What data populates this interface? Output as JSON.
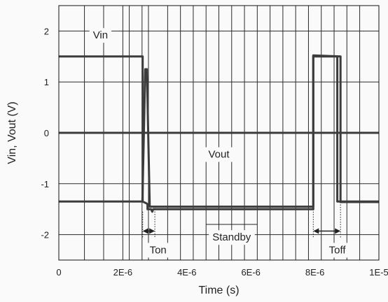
{
  "chart_data": {
    "type": "line",
    "title": "",
    "xlabel": "Time (s)",
    "ylabel": "Vin, Vout (V)",
    "xlim": [
      0,
      1e-05
    ],
    "ylim": [
      -2.5,
      2.5
    ],
    "x_ticks": [
      {
        "value": 0,
        "label": "0"
      },
      {
        "value": 2e-06,
        "label": "2E-6"
      },
      {
        "value": 4e-06,
        "label": "4E-6"
      },
      {
        "value": 6e-06,
        "label": "6E-6"
      },
      {
        "value": 8e-06,
        "label": "8E-6"
      },
      {
        "value": 1e-05,
        "label": "1E-5"
      }
    ],
    "y_ticks": [
      {
        "value": 2,
        "label": "2"
      },
      {
        "value": 1,
        "label": "1"
      },
      {
        "value": 0,
        "label": "0"
      },
      {
        "value": -1,
        "label": "-1"
      },
      {
        "value": -2,
        "label": "-2"
      }
    ],
    "x_minor_gridlines": [
      8e-07,
      1.4e-06,
      2e-06,
      2.2e-06,
      2.6e-06,
      2.8e-06,
      3.4e-06,
      3.8e-06,
      4.2e-06,
      4.6e-06,
      5e-06,
      5.4e-06,
      5.8e-06,
      6.2e-06,
      6.6e-06,
      7e-06,
      7.4e-06,
      7.8e-06,
      8.2e-06,
      8.6e-06,
      9e-06,
      9.4e-06
    ],
    "grid": true,
    "series": [
      {
        "name": "",
        "color": "#3c3c3c",
        "x": [
          0,
          2.62e-06,
          2.62e-06,
          2.72e-06,
          2.77e-06,
          2.77e-06,
          2.88e-06,
          2.92e-06,
          2.95e-06,
          7.95e-06,
          7.95e-06,
          8.8e-06,
          8.8e-06,
          1e-05
        ],
        "y": [
          1.5,
          1.5,
          -1.35,
          -1.38,
          -1.4,
          -1.5,
          -1.5,
          -1.55,
          -1.5,
          -1.5,
          1.52,
          1.5,
          -1.36,
          -1.36
        ]
      },
      {
        "name": "",
        "color": "#3c3c3c",
        "x": [
          0,
          2.45e-06,
          2.46e-06,
          2.6e-06,
          2.61e-06,
          2.7e-06,
          2.75e-06,
          2.84e-06,
          2.87e-06,
          2.91e-06,
          2.92e-06,
          3.05e-06,
          3e-06,
          7.95e-06,
          7.95e-06,
          8.7e-06,
          8.7e-06,
          1e-05
        ],
        "y": [
          -1.35,
          -1.35,
          -1.35,
          -1.35,
          -1.35,
          1.25,
          1.25,
          -1.45,
          -1.45,
          -1.45,
          -1.45,
          -1.45,
          -1.45,
          -1.45,
          1.5,
          1.5,
          -1.35,
          -1.35
        ]
      }
    ],
    "annotations": [
      {
        "text": "Vin",
        "x": 1.3e-06,
        "y": 1.92
      },
      {
        "text": "Vout",
        "x": 5e-06,
        "y": -0.42
      },
      {
        "text": "Ton",
        "x": 3.1e-06,
        "y": -2.3
      },
      {
        "text": "Standby",
        "x": 5.4e-06,
        "y": -2.05
      },
      {
        "text": "Toff",
        "x": 8.7e-06,
        "y": -2.3
      }
    ]
  }
}
